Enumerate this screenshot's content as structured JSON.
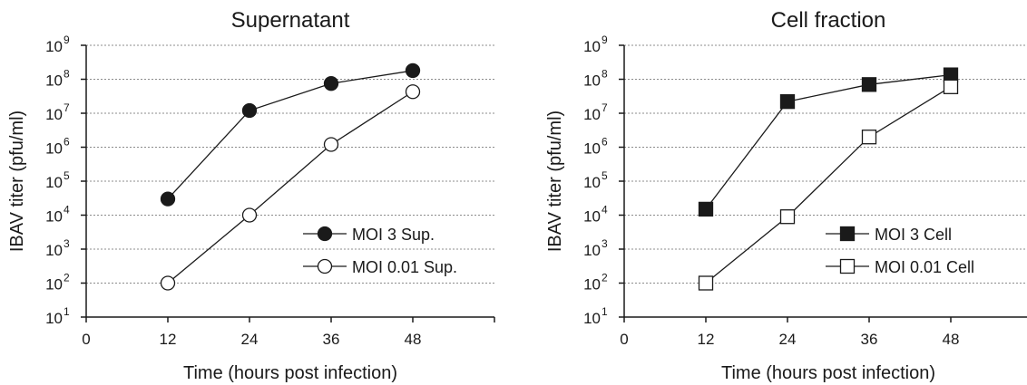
{
  "chart_data": [
    {
      "type": "line",
      "title": "Supernatant",
      "xlabel": "Time (hours post infection)",
      "ylabel": "IBAV titer (pfu/ml)",
      "x_ticks": [
        "0",
        "12",
        "24",
        "36",
        "48"
      ],
      "xlim": [
        0,
        60
      ],
      "y_scale": "log",
      "ylim": [
        10,
        1000000000
      ],
      "y_tick_base": "10",
      "y_tick_exponents": [
        "1",
        "2",
        "3",
        "4",
        "5",
        "6",
        "7",
        "8",
        "9"
      ],
      "grid": "horizontal dotted",
      "legend_placement": "center-right",
      "series": [
        {
          "name": "MOI 3 Sup.",
          "marker": "filled-circle",
          "x": [
            12,
            24,
            36,
            48
          ],
          "values": [
            30000,
            12000000,
            75000000,
            180000000
          ]
        },
        {
          "name": "MOI 0.01 Sup.",
          "marker": "open-circle",
          "x": [
            12,
            24,
            36,
            48
          ],
          "values": [
            100,
            10000,
            1200000,
            43000000
          ]
        }
      ]
    },
    {
      "type": "line",
      "title": "Cell fraction",
      "xlabel": "Time (hours post infection)",
      "ylabel": "IBAV titer (pfu/ml)",
      "x_ticks": [
        "0",
        "12",
        "24",
        "36",
        "48"
      ],
      "xlim": [
        0,
        60
      ],
      "y_scale": "log",
      "ylim": [
        10,
        1000000000
      ],
      "y_tick_base": "10",
      "y_tick_exponents": [
        "1",
        "2",
        "3",
        "4",
        "5",
        "6",
        "7",
        "8",
        "9"
      ],
      "grid": "horizontal dotted",
      "legend_placement": "lower-right",
      "series": [
        {
          "name": "MOI 3 Cell",
          "marker": "filled-square",
          "x": [
            12,
            24,
            36,
            48
          ],
          "values": [
            15000,
            22000000,
            70000000,
            135000000
          ]
        },
        {
          "name": "MOI 0.01 Cell",
          "marker": "open-square",
          "x": [
            12,
            24,
            36,
            48
          ],
          "values": [
            100,
            9000,
            2000000,
            60000000
          ]
        }
      ]
    }
  ],
  "colors": {
    "ink": "#1a1a1a",
    "grid": "#8c8c8c",
    "open_fill": "#ffffff"
  }
}
